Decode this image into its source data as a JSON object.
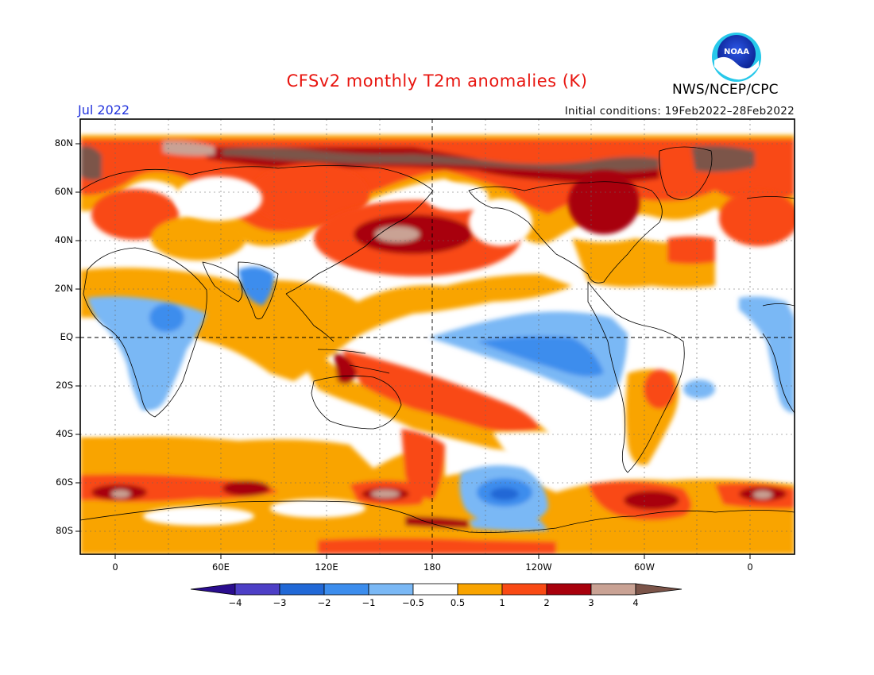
{
  "header": {
    "title": "CFSv2 monthly T2m anomalies (K)",
    "period": "Jul 2022",
    "initial_conditions": "Initial conditions: 19Feb2022–28Feb2022",
    "agency": "NWS/NCEP/CPC",
    "logo_text": "NOAA"
  },
  "colors": {
    "title": "#e8150f",
    "period": "#2233dd",
    "palette": [
      "#2a0d8e",
      "#4d3fc6",
      "#2168d6",
      "#3c8ded",
      "#7ab8f5",
      "#ffffff",
      "#f9a400",
      "#f94a14",
      "#a8000c",
      "#c9a294",
      "#7b5449"
    ]
  },
  "map": {
    "lat_labels": [
      "80N",
      "60N",
      "40N",
      "20N",
      "EQ",
      "20S",
      "40S",
      "60S",
      "80S"
    ],
    "lon_labels": [
      "0",
      "60E",
      "120E",
      "180",
      "120W",
      "60W",
      "0"
    ]
  },
  "colorbar": {
    "labels": [
      "−4",
      "−3",
      "−2",
      "−1",
      "−0.5",
      "0.5",
      "1",
      "2",
      "3",
      "4"
    ]
  }
}
